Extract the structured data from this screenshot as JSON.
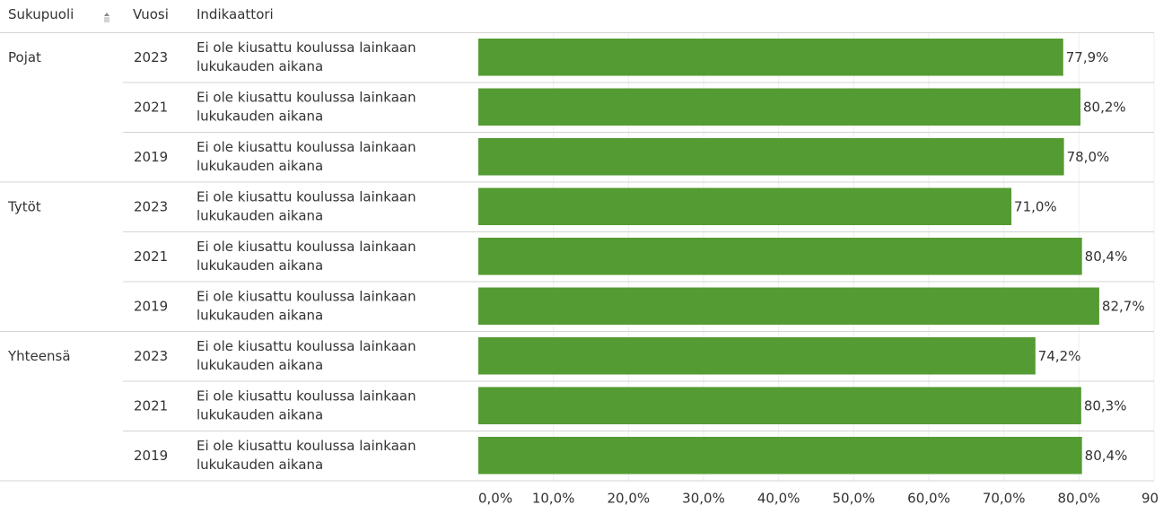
{
  "headers": {
    "gender": "Sukupuoli",
    "year": "Vuosi",
    "indicator": "Indikaattori"
  },
  "colors": {
    "bar": "#539B32",
    "text": "#333333",
    "rule": "#d4d4d4",
    "grid": "#efefef"
  },
  "chart_data": {
    "type": "bar",
    "orientation": "horizontal",
    "value_format": "percent_1_decimal_comma",
    "xlim": [
      0,
      90
    ],
    "x_ticks": [
      "0,0%",
      "10,0%",
      "20,0%",
      "30,0%",
      "40,0%",
      "50,0%",
      "60,0%",
      "70,0%",
      "80,0%",
      "90"
    ],
    "x_tick_values": [
      0,
      10,
      20,
      30,
      40,
      50,
      60,
      70,
      80,
      90
    ],
    "grid": true,
    "groups": [
      {
        "name": "Pojat",
        "rows": [
          {
            "year": "2023",
            "indicator_lines": [
              "Ei ole kiusattu koulussa lainkaan",
              "lukukauden aikana"
            ],
            "value": 77.9,
            "label": "77,9%"
          },
          {
            "year": "2021",
            "indicator_lines": [
              "Ei ole kiusattu koulussa lainkaan",
              "lukukauden aikana"
            ],
            "value": 80.2,
            "label": "80,2%"
          },
          {
            "year": "2019",
            "indicator_lines": [
              "Ei ole kiusattu koulussa lainkaan",
              "lukukauden aikana"
            ],
            "value": 78.0,
            "label": "78,0%"
          }
        ]
      },
      {
        "name": "Tytöt",
        "rows": [
          {
            "year": "2023",
            "indicator_lines": [
              "Ei ole kiusattu koulussa lainkaan",
              "lukukauden aikana"
            ],
            "value": 71.0,
            "label": "71,0%"
          },
          {
            "year": "2021",
            "indicator_lines": [
              "Ei ole kiusattu koulussa lainkaan",
              "lukukauden aikana"
            ],
            "value": 80.4,
            "label": "80,4%"
          },
          {
            "year": "2019",
            "indicator_lines": [
              "Ei ole kiusattu koulussa lainkaan",
              "lukukauden aikana"
            ],
            "value": 82.7,
            "label": "82,7%"
          }
        ]
      },
      {
        "name": "Yhteensä",
        "rows": [
          {
            "year": "2023",
            "indicator_lines": [
              "Ei ole kiusattu koulussa lainkaan",
              "lukukauden aikana"
            ],
            "value": 74.2,
            "label": "74,2%"
          },
          {
            "year": "2021",
            "indicator_lines": [
              "Ei ole kiusattu koulussa lainkaan",
              "lukukauden aikana"
            ],
            "value": 80.3,
            "label": "80,3%"
          },
          {
            "year": "2019",
            "indicator_lines": [
              "Ei ole kiusattu koulussa lainkaan",
              "lukukauden aikana"
            ],
            "value": 80.4,
            "label": "80,4%"
          }
        ]
      }
    ]
  }
}
